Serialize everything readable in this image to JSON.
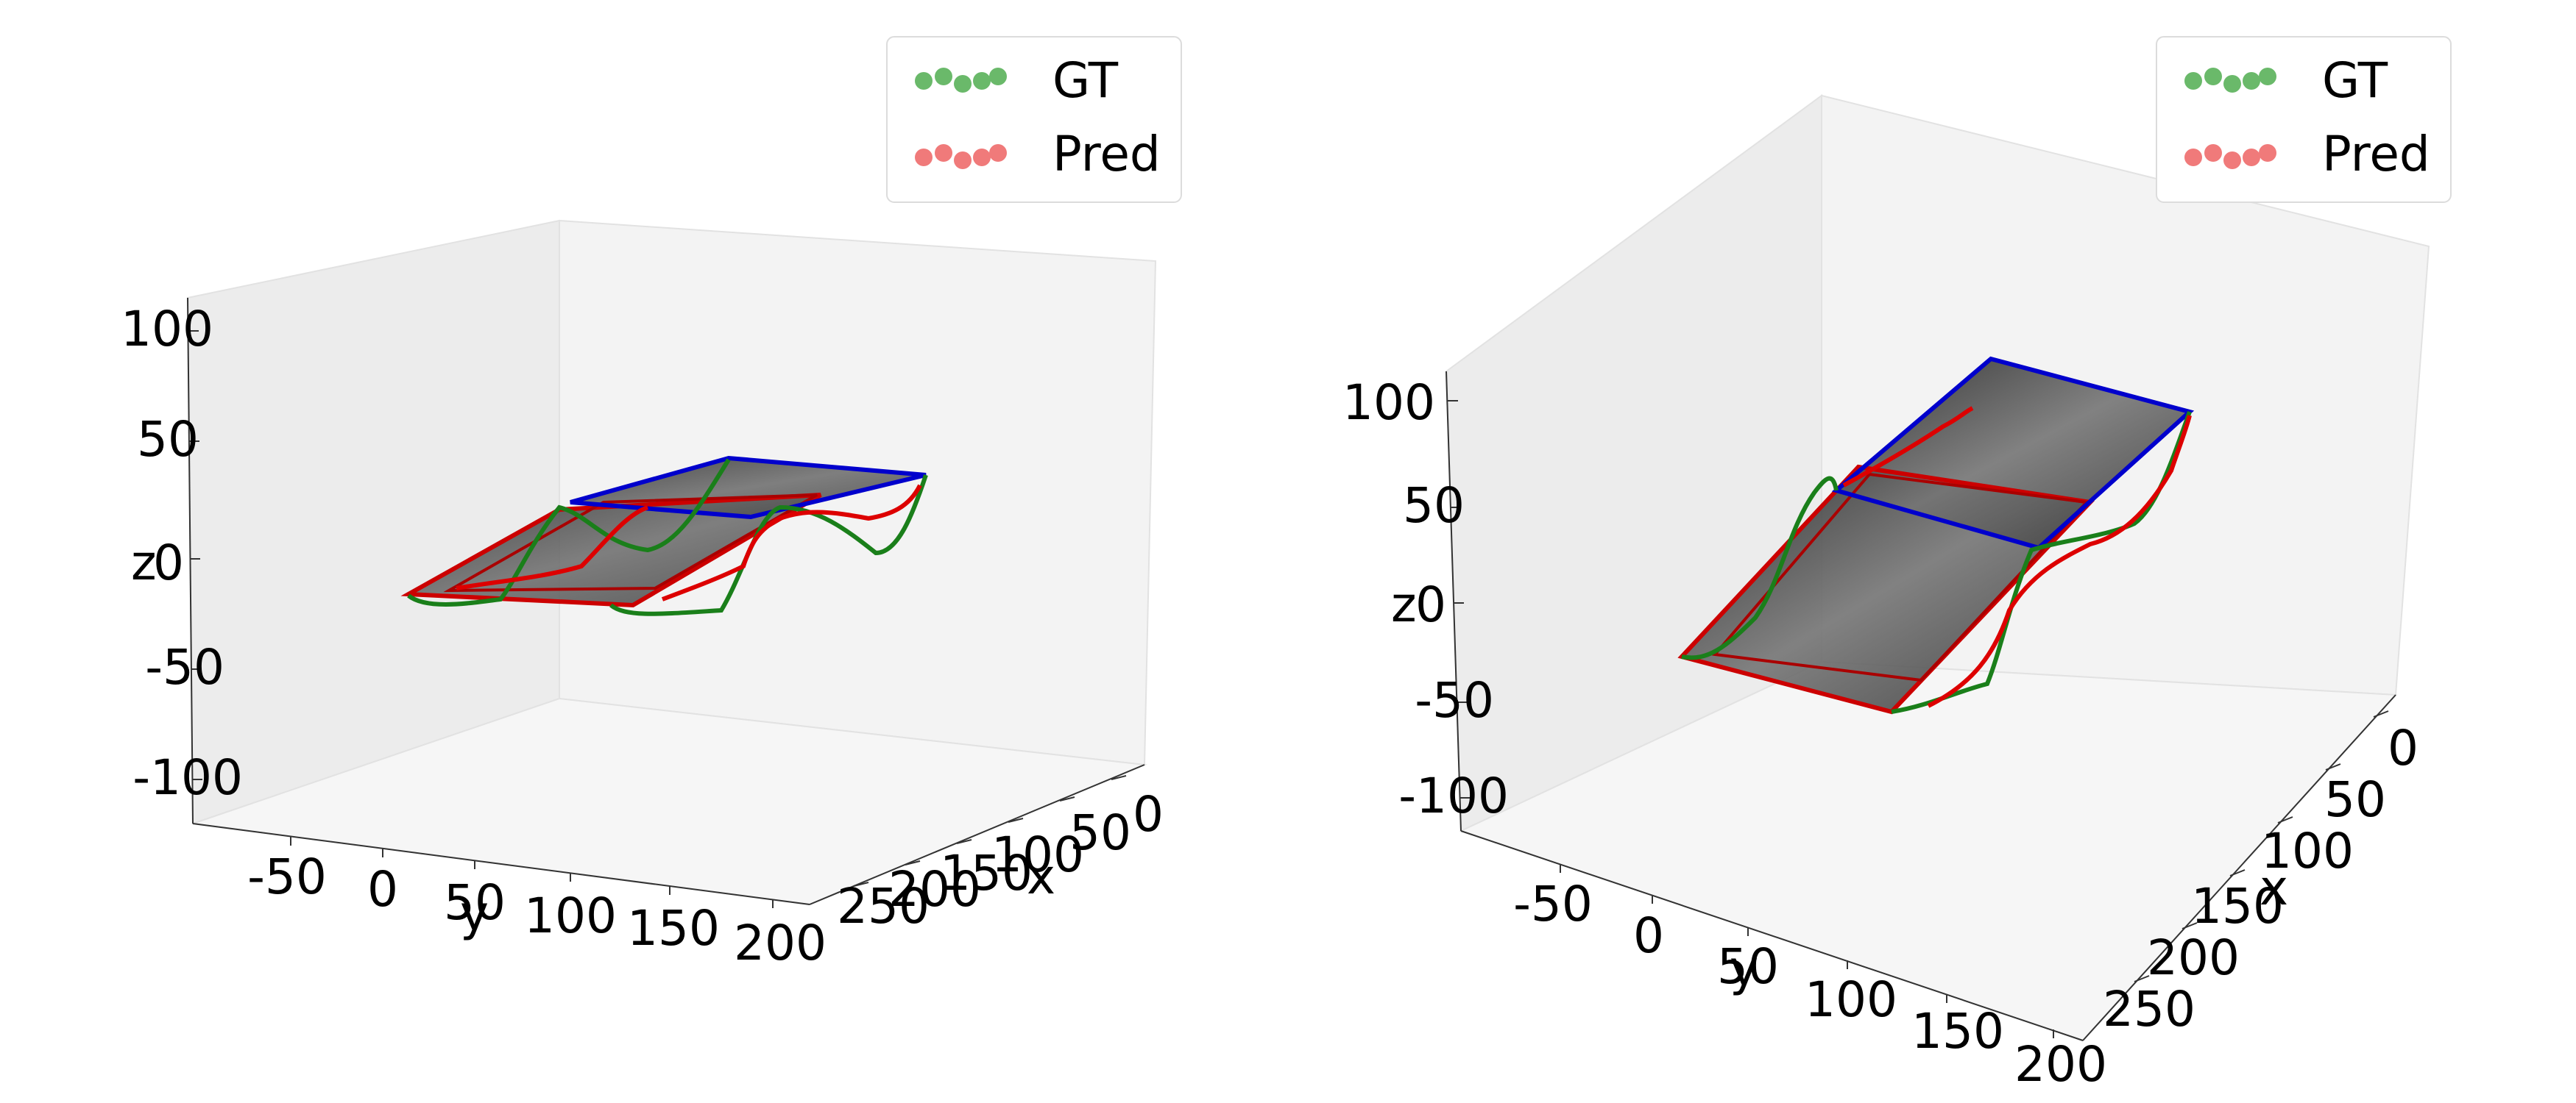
{
  "chart_data": [
    {
      "type": "line",
      "projection": "3d",
      "xlabel": "x",
      "ylabel": "y",
      "zlabel": "z",
      "xticks": [
        "0",
        "50",
        "100",
        "150",
        "200",
        "250"
      ],
      "yticks": [
        "-50",
        "0",
        "50",
        "100",
        "150",
        "200"
      ],
      "zticks": [
        "100",
        "50",
        "0",
        "-50",
        "-100"
      ],
      "xlim": [
        0,
        280
      ],
      "ylim": [
        -80,
        200
      ],
      "zlim": [
        -120,
        110
      ],
      "grid": false,
      "legend_position": "top-right",
      "series": [
        {
          "name": "GT",
          "color": "#1f7f1f",
          "marker_color": "#6ab96a"
        },
        {
          "name": "Pred",
          "color": "#dd0000",
          "marker_color": "#f07a7a"
        }
      ],
      "frames": [
        {
          "color": "#0000cc"
        },
        {
          "color": "#cc0000"
        }
      ]
    },
    {
      "type": "line",
      "projection": "3d",
      "xlabel": "x",
      "ylabel": "y",
      "zlabel": "z",
      "xticks": [
        "0",
        "50",
        "100",
        "150",
        "200",
        "250"
      ],
      "yticks": [
        "-50",
        "0",
        "50",
        "100",
        "150",
        "200"
      ],
      "zticks": [
        "100",
        "50",
        "0",
        "-50",
        "-100"
      ],
      "xlim": [
        0,
        280
      ],
      "ylim": [
        -80,
        200
      ],
      "zlim": [
        -120,
        110
      ],
      "grid": false,
      "legend_position": "top-right",
      "series": [
        {
          "name": "GT",
          "color": "#1f7f1f",
          "marker_color": "#6ab96a"
        },
        {
          "name": "Pred",
          "color": "#dd0000",
          "marker_color": "#f07a7a"
        }
      ],
      "frames": [
        {
          "color": "#0000cc"
        },
        {
          "color": "#cc0000"
        }
      ]
    }
  ]
}
